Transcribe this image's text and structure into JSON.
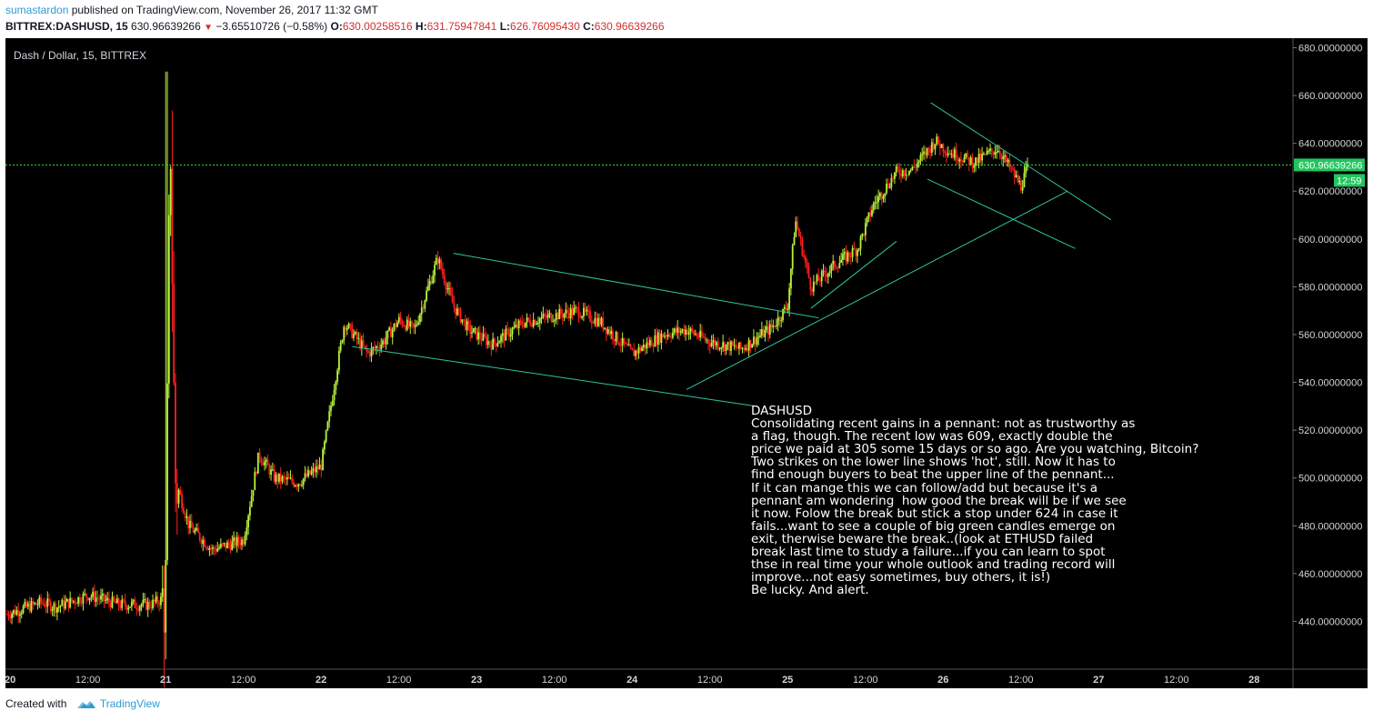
{
  "header": {
    "user": "sumastardon",
    "published_text": " published on TradingView.com, November 26, 2017 11:32 GMT",
    "symbol": "BITTREX:DASHUSD, 15",
    "last": "630.96639266",
    "change": "−3.65510726 (−0.58%)",
    "o_label": "O:",
    "o": "630.00258516",
    "h_label": "H:",
    "h": "631.75947841",
    "l_label": "L:",
    "l": "626.76095430",
    "c_label": "C:",
    "c": "630.96639266"
  },
  "footer": {
    "created_with": "Created with",
    "brand": "TradingView"
  },
  "colors": {
    "background": "#000000",
    "up": "#b7f23a",
    "down": "#ff1f1f",
    "trendline": "#2ec4a0",
    "price_line": "#3ddc3d",
    "label_bg": "#22c55e"
  },
  "chart_data": {
    "type": "candlestick",
    "title": "Dash / Dollar, 15, BITTREX",
    "ylim": [
      420,
      684
    ],
    "y_ticks": [
      "680.00000000",
      "660.00000000",
      "640.00000000",
      "620.00000000",
      "600.00000000",
      "580.00000000",
      "560.00000000",
      "540.00000000",
      "520.00000000",
      "500.00000000",
      "480.00000000",
      "460.00000000",
      "440.00000000"
    ],
    "y_tick_values": [
      680,
      660,
      640,
      620,
      600,
      580,
      560,
      540,
      520,
      500,
      480,
      460,
      440
    ],
    "x_ticks": [
      "20",
      "12:00",
      "21",
      "12:00",
      "22",
      "12:00",
      "23",
      "12:00",
      "24",
      "12:00",
      "25",
      "12:00",
      "26",
      "12:00",
      "27",
      "12:00",
      "28"
    ],
    "x_tick_days": [
      20,
      20.5,
      21,
      21.5,
      22,
      22.5,
      23,
      23.5,
      24,
      24.5,
      25,
      25.5,
      26,
      26.5,
      27,
      27.5,
      28
    ],
    "xlim_days": [
      19.97,
      28.25
    ],
    "last_price": 630.96639266,
    "last_price_label": "630.96639266",
    "countdown_label": "12:59",
    "price_path_days": [
      19.98,
      20.2,
      20.3,
      20.5,
      20.7,
      20.9,
      21.0,
      21.03,
      21.06,
      21.15,
      21.3,
      21.5,
      21.6,
      21.7,
      21.85,
      22.0,
      22.15,
      22.3,
      22.4,
      22.5,
      22.6,
      22.75,
      22.85,
      22.95,
      23.1,
      23.3,
      23.5,
      23.65,
      23.8,
      24.0,
      24.2,
      24.35,
      24.5,
      24.7,
      24.9,
      25.0,
      25.05,
      25.15,
      25.3,
      25.45,
      25.55,
      25.7,
      25.8,
      25.95,
      26.05,
      26.2,
      26.35,
      26.5,
      26.55
    ],
    "price_path_values": [
      443,
      448,
      446,
      451,
      447,
      447,
      450,
      650,
      500,
      480,
      470,
      474,
      510,
      500,
      498,
      505,
      565,
      552,
      557,
      566,
      562,
      592,
      572,
      562,
      556,
      565,
      568,
      570,
      565,
      552,
      560,
      562,
      557,
      554,
      563,
      572,
      608,
      580,
      589,
      596,
      614,
      628,
      629,
      641,
      636,
      632,
      638,
      622,
      631
    ],
    "trendlines": [
      {
        "from": [
          22.85,
          594
        ],
        "to": [
          25.2,
          567
        ]
      },
      {
        "from": [
          22.2,
          555
        ],
        "to": [
          24.8,
          530
        ]
      },
      {
        "from": [
          24.35,
          537
        ],
        "to": [
          26.8,
          620
        ]
      },
      {
        "from": [
          25.15,
          571
        ],
        "to": [
          25.7,
          599
        ]
      },
      {
        "from": [
          25.9,
          625
        ],
        "to": [
          26.85,
          596
        ]
      },
      {
        "from": [
          25.92,
          657
        ],
        "to": [
          27.08,
          608
        ]
      }
    ],
    "annotation": {
      "title": "DASHUSD",
      "lines": [
        "Consolidating recent gains in a pennant: not as trustworthy as",
        "a flag, though. The recent low was 609, exactly double the",
        "price we paid at 305 some 15 days or so ago. Are you watching, Bitcoin?",
        "Two strikes on the lower line shows 'hot', still. Now it has to",
        "find enough buyers to beat the upper line of the pennant...",
        "If it can mange this we can follow/add but because it's a",
        "pennant am wondering  how good the break will be if we see",
        "it now. Folow the break but stick a stop under 624 in case it",
        "fails...want to see a couple of big green candles emerge on",
        "exit, therwise beware the break..(look at ETHUSD failed",
        "break last time to study a failure...if you can learn to spot",
        "thse in real time your whole outlook and trading record will",
        "improve...not easy sometimes, buy others, it is!)",
        "Be lucky. And alert."
      ]
    }
  }
}
